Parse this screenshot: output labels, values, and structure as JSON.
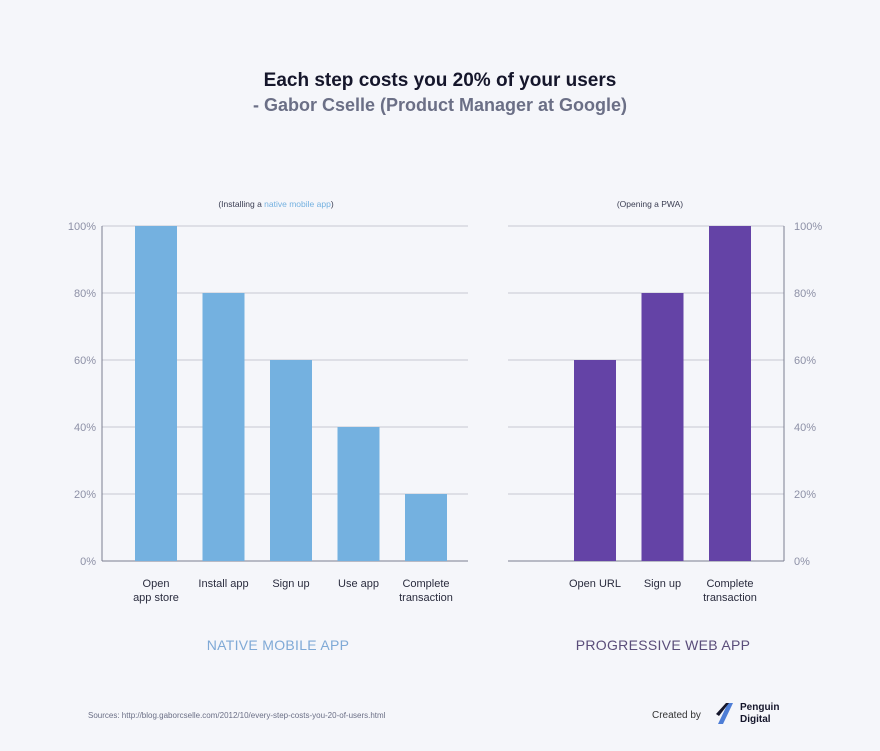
{
  "header": {
    "title": "Each step costs you 20% of your users",
    "subtitle": "- Gabor Cselle (Product Manager at Google)"
  },
  "chart_data": [
    {
      "type": "bar",
      "title": "(Installing a native mobile app)",
      "title_prefix": "(Installing a ",
      "title_highlight": "native mobile app",
      "title_suffix": ")",
      "categories": [
        [
          "Open",
          "app store"
        ],
        [
          "Install app"
        ],
        [
          "Sign up"
        ],
        [
          "Use app"
        ],
        [
          "Complete",
          "transaction"
        ]
      ],
      "values": [
        100,
        80,
        60,
        40,
        20
      ],
      "ylim": [
        0,
        100
      ],
      "yticks": [
        "0%",
        "20%",
        "40%",
        "60%",
        "80%",
        "100%"
      ],
      "axis_side": "left",
      "grid": true,
      "color": "#74b1e0",
      "section_label": "NATIVE MOBILE APP"
    },
    {
      "type": "bar",
      "title": "(Opening a PWA)",
      "categories": [
        [
          "Open URL"
        ],
        [
          "Sign up"
        ],
        [
          "Complete",
          "transaction"
        ]
      ],
      "values": [
        60,
        80,
        100
      ],
      "ylim": [
        0,
        100
      ],
      "yticks": [
        "0%",
        "20%",
        "40%",
        "60%",
        "80%",
        "100%"
      ],
      "axis_side": "right",
      "grid": true,
      "color": "#6443a6",
      "section_label": "PROGRESSIVE WEB APP"
    }
  ],
  "colors": {
    "highlight": "#74b1e0",
    "native_label": "#7fa9d6",
    "pwa_label": "#5a4d7a"
  },
  "footer": {
    "sources": "Sources: http://blog.gaborcselle.com/2012/10/every-step-costs-you-20-of-users.html",
    "created_by": "Created by",
    "logo_line1": "Penguin",
    "logo_line2": "Digital",
    "logo_icon": "penguin-digital-logo-icon"
  }
}
